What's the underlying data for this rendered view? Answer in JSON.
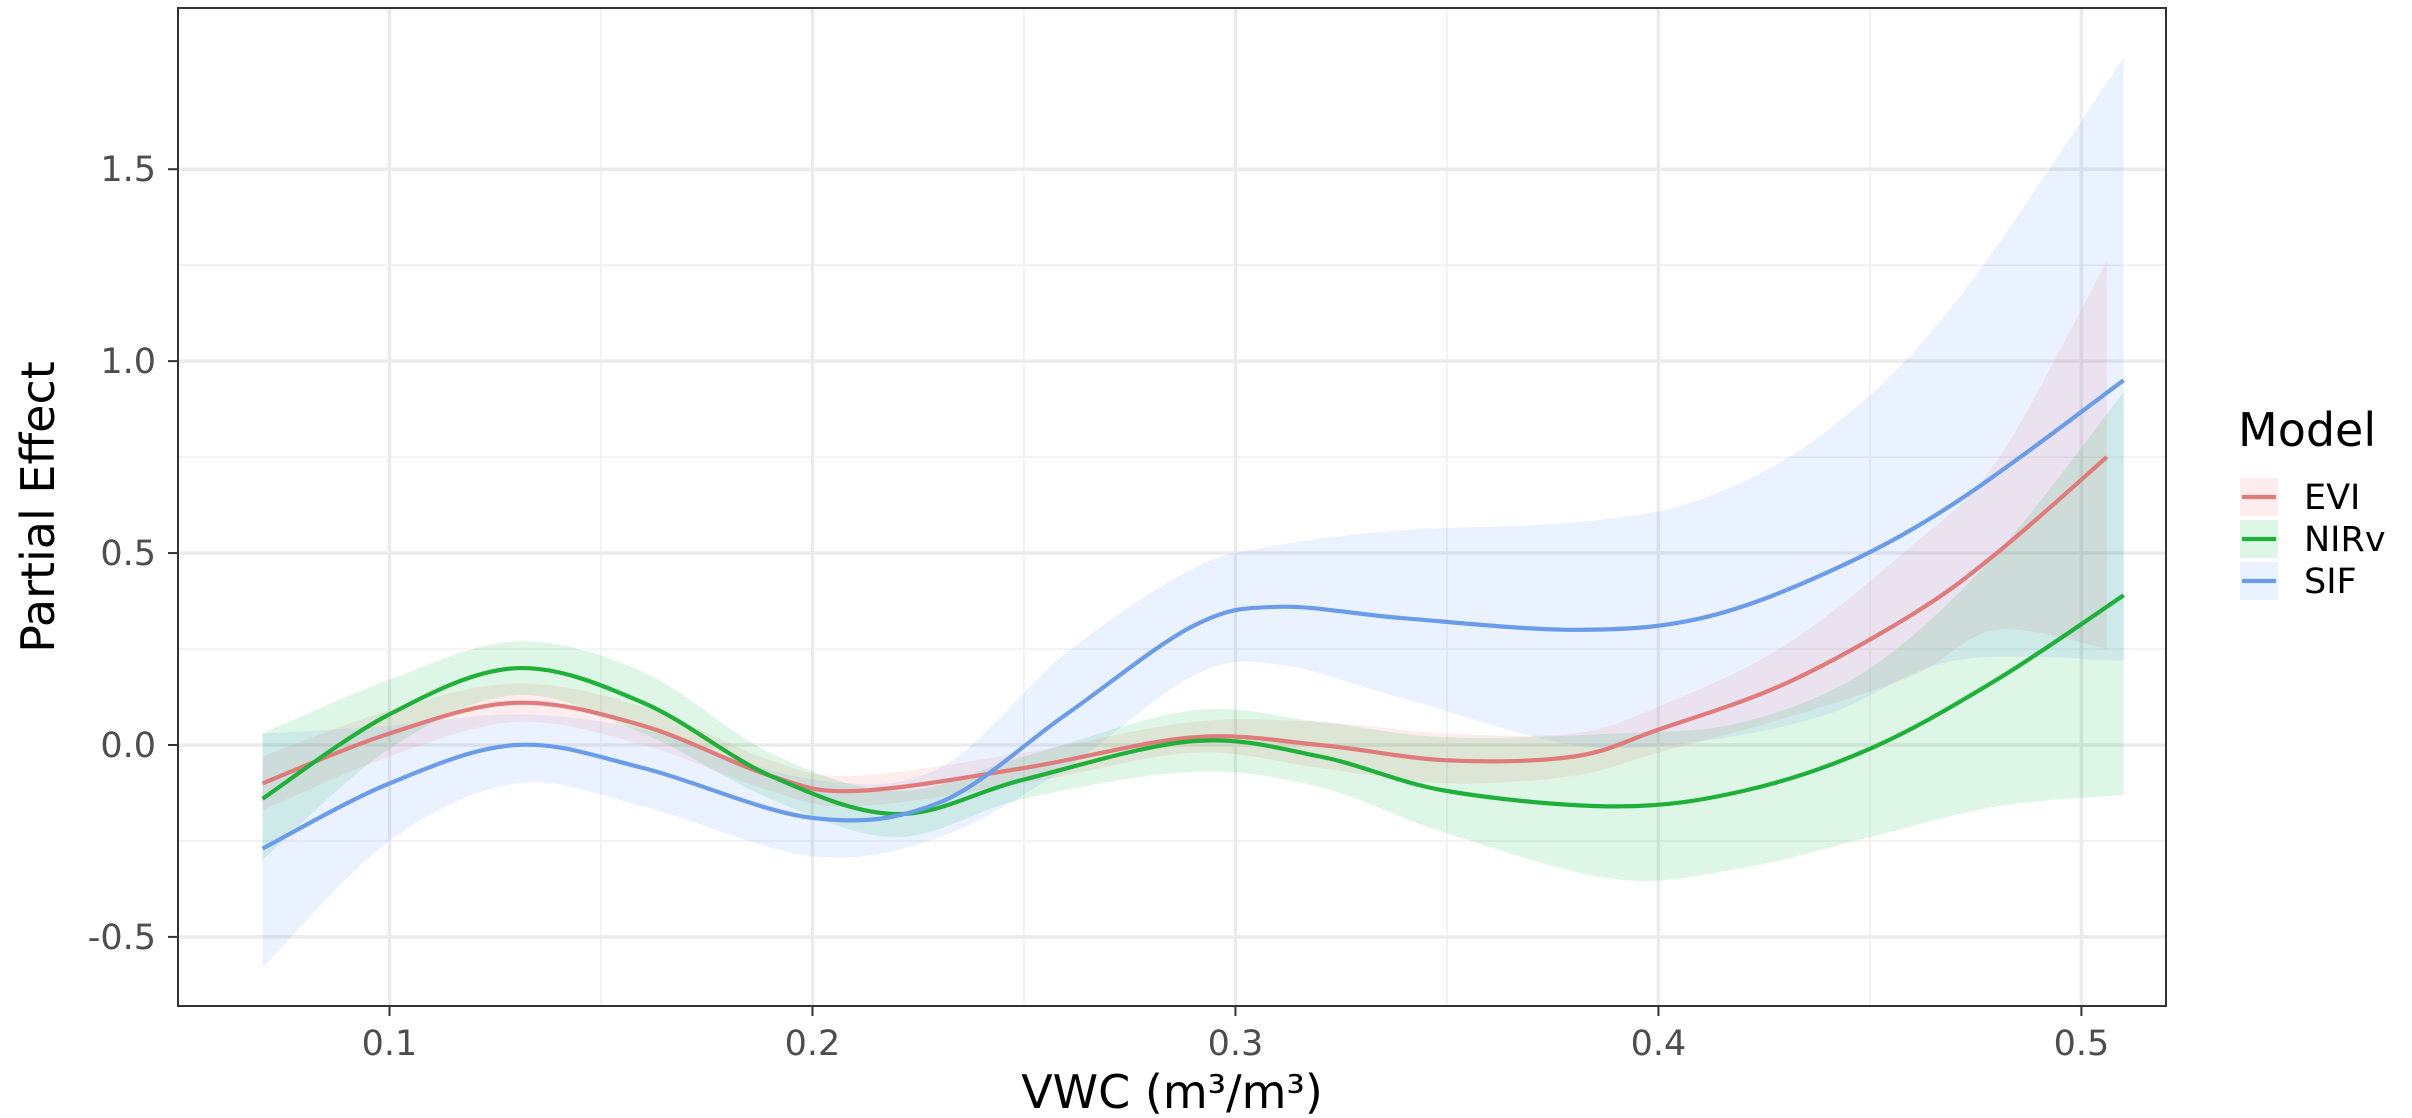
{
  "chart_data": {
    "type": "line",
    "title": "",
    "xlabel": "VWC (m³/m³)",
    "ylabel": "Partial Effect",
    "xlim": [
      0.05,
      0.52
    ],
    "ylim": [
      -0.68,
      1.92
    ],
    "x_ticks": [
      0.1,
      0.2,
      0.3,
      0.4,
      0.5
    ],
    "x_tick_labels": [
      "0.1",
      "0.2",
      "0.3",
      "0.4",
      "0.5"
    ],
    "y_ticks": [
      -0.5,
      0.0,
      0.5,
      1.0,
      1.5
    ],
    "y_tick_labels": [
      "-0.5",
      "0.0",
      "0.5",
      "1.0",
      "1.5"
    ],
    "grid": true,
    "legend": {
      "title": "Model",
      "position": "right"
    },
    "series": [
      {
        "name": "EVI",
        "color": "#E07B7B",
        "fill": "#F8766D",
        "x": [
          0.07,
          0.1,
          0.13,
          0.16,
          0.19,
          0.21,
          0.25,
          0.29,
          0.32,
          0.35,
          0.38,
          0.4,
          0.43,
          0.46,
          0.48,
          0.506
        ],
        "y": [
          -0.1,
          0.03,
          0.11,
          0.05,
          -0.08,
          -0.12,
          -0.06,
          0.02,
          0.0,
          -0.04,
          -0.03,
          0.04,
          0.16,
          0.34,
          0.5,
          0.75
        ],
        "lower": [
          -0.17,
          -0.03,
          0.06,
          0.0,
          -0.12,
          -0.16,
          -0.1,
          -0.02,
          -0.06,
          -0.1,
          -0.08,
          -0.02,
          0.07,
          0.18,
          0.3,
          0.25
        ],
        "upper": [
          -0.03,
          0.09,
          0.16,
          0.1,
          -0.04,
          -0.08,
          -0.02,
          0.06,
          0.06,
          0.03,
          0.03,
          0.1,
          0.26,
          0.52,
          0.74,
          1.26
        ]
      },
      {
        "name": "NIRv",
        "color": "#1FB03A",
        "fill": "#00BA38",
        "x": [
          0.07,
          0.1,
          0.13,
          0.16,
          0.19,
          0.22,
          0.25,
          0.29,
          0.32,
          0.35,
          0.39,
          0.42,
          0.45,
          0.48,
          0.51
        ],
        "y": [
          -0.14,
          0.08,
          0.2,
          0.11,
          -0.08,
          -0.18,
          -0.09,
          0.01,
          -0.03,
          -0.12,
          -0.16,
          -0.12,
          -0.01,
          0.17,
          0.39
        ],
        "lower": [
          -0.3,
          -0.01,
          0.13,
          0.03,
          -0.14,
          -0.24,
          -0.14,
          -0.07,
          -0.11,
          -0.23,
          -0.35,
          -0.32,
          -0.24,
          -0.16,
          -0.13
        ],
        "upper": [
          0.03,
          0.17,
          0.27,
          0.19,
          -0.02,
          -0.12,
          -0.03,
          0.09,
          0.06,
          0.02,
          0.03,
          0.06,
          0.2,
          0.5,
          0.92
        ]
      },
      {
        "name": "SIF",
        "color": "#6A9CEA",
        "fill": "#619CFF",
        "x": [
          0.07,
          0.1,
          0.13,
          0.16,
          0.2,
          0.23,
          0.26,
          0.29,
          0.31,
          0.34,
          0.38,
          0.41,
          0.44,
          0.47,
          0.51
        ],
        "y": [
          -0.27,
          -0.1,
          0.0,
          -0.06,
          -0.19,
          -0.15,
          0.08,
          0.31,
          0.36,
          0.33,
          0.3,
          0.33,
          0.45,
          0.63,
          0.95
        ],
        "lower": [
          -0.58,
          -0.25,
          -0.1,
          -0.16,
          -0.29,
          -0.24,
          -0.06,
          0.18,
          0.21,
          0.12,
          0.0,
          0.01,
          0.08,
          0.22,
          0.22
        ],
        "upper": [
          0.03,
          0.05,
          0.08,
          0.04,
          -0.09,
          -0.06,
          0.24,
          0.46,
          0.52,
          0.56,
          0.58,
          0.64,
          0.82,
          1.15,
          1.79
        ]
      }
    ]
  }
}
